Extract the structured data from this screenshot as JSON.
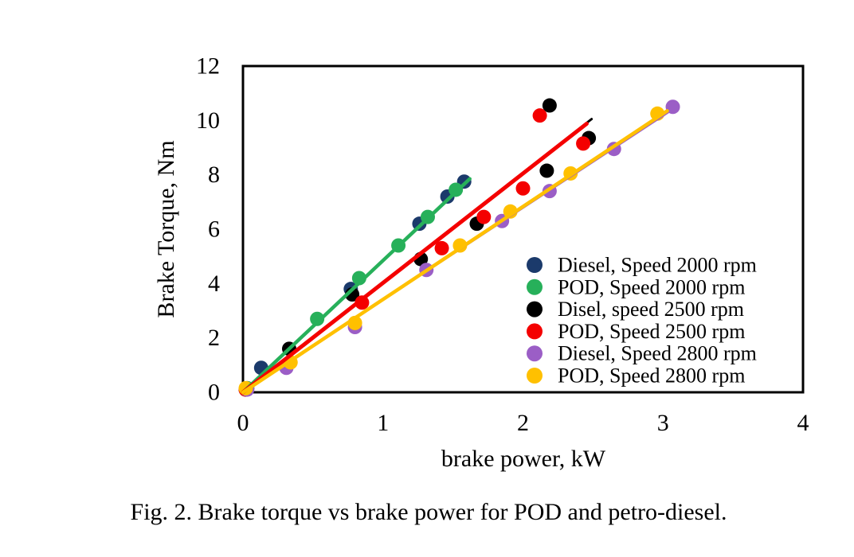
{
  "figure": {
    "caption": "Fig. 2. Brake torque vs brake power for POD and petro-diesel."
  },
  "chart_data": {
    "type": "scatter",
    "title": "",
    "xlabel": "brake power, kW",
    "ylabel": "Brake Torque, Nm",
    "xlim": [
      0,
      4
    ],
    "ylim": [
      0,
      12
    ],
    "xticks": [
      0,
      1,
      2,
      3,
      4
    ],
    "yticks": [
      0,
      2,
      4,
      6,
      8,
      10,
      12
    ],
    "grid": false,
    "legend_position": "inside-right",
    "marker": "circle",
    "series": [
      {
        "name": "Diesel, Speed 2000 rpm",
        "color": "#1b3a6b",
        "x": [
          0.03,
          0.13,
          0.77,
          1.26,
          1.46,
          1.58
        ],
        "y": [
          0.15,
          0.9,
          3.8,
          6.2,
          7.2,
          7.75
        ],
        "trendline": {
          "x": [
            0,
            1.6
          ],
          "y": [
            0,
            7.75
          ],
          "width": 2
        }
      },
      {
        "name": "POD, Speed 2000 rpm",
        "color": "#27b05a",
        "x": [
          0.03,
          0.53,
          0.83,
          1.11,
          1.32,
          1.52
        ],
        "y": [
          0.15,
          2.7,
          4.2,
          5.4,
          6.45,
          7.45
        ],
        "trendline": {
          "x": [
            0,
            1.62
          ],
          "y": [
            0,
            7.85
          ],
          "width": 4.5
        }
      },
      {
        "name": "Disel, speed 2500 rpm",
        "color": "#000000",
        "x": [
          0.02,
          0.33,
          0.78,
          1.27,
          1.67,
          2.17,
          2.19,
          2.47
        ],
        "y": [
          0.1,
          1.6,
          3.6,
          4.9,
          6.2,
          8.15,
          10.55,
          9.35
        ],
        "trendline": {
          "x": [
            0,
            2.49
          ],
          "y": [
            0,
            10.05
          ],
          "width": 3
        }
      },
      {
        "name": "POD, Speed 2500 rpm",
        "color": "#f40000",
        "x": [
          0.02,
          0.85,
          1.42,
          1.72,
          2.0,
          2.12,
          2.43
        ],
        "y": [
          0.1,
          3.3,
          5.3,
          6.45,
          7.5,
          10.18,
          9.15
        ],
        "trendline": {
          "x": [
            0,
            2.455
          ],
          "y": [
            0,
            9.88
          ],
          "width": 5
        }
      },
      {
        "name": "Diesel, Speed 2800 rpm",
        "color": "#9b5ec6",
        "x": [
          0.03,
          0.31,
          0.8,
          1.31,
          1.85,
          2.19,
          2.65,
          3.07
        ],
        "y": [
          0.1,
          0.9,
          2.4,
          4.5,
          6.3,
          7.4,
          8.95,
          10.5
        ],
        "trendline": {
          "x": [
            0,
            3.1
          ],
          "y": [
            0,
            10.5
          ],
          "width": 2
        }
      },
      {
        "name": "POD, Speed 2800 rpm",
        "color": "#ffc000",
        "x": [
          0.02,
          0.34,
          0.8,
          1.55,
          1.91,
          2.34,
          2.96
        ],
        "y": [
          0.15,
          1.1,
          2.55,
          5.4,
          6.65,
          8.05,
          10.25
        ],
        "trendline": {
          "x": [
            0,
            3.03
          ],
          "y": [
            0,
            10.35
          ],
          "width": 4.5
        }
      }
    ]
  }
}
